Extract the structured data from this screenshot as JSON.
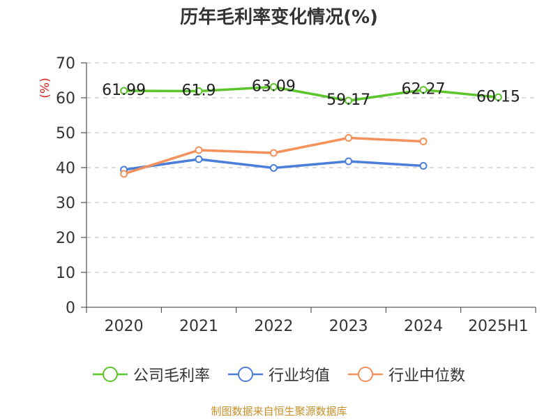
{
  "chart_data": {
    "type": "line",
    "title": "历年毛利率变化情况(%)",
    "ylabel": "(%)",
    "categories": [
      "2020",
      "2021",
      "2022",
      "2023",
      "2024",
      "2025H1"
    ],
    "ylim": [
      0,
      70
    ],
    "yticks": [
      0,
      10,
      20,
      30,
      40,
      50,
      60,
      70
    ],
    "grid": true,
    "legend_position": "bottom",
    "series": [
      {
        "name": "公司毛利率",
        "color": "#5cc52c",
        "values": [
          61.99,
          61.9,
          63.09,
          59.17,
          62.27,
          60.15
        ],
        "labels": [
          "61.99",
          "61.9",
          "63.09",
          "59.17",
          "62.27",
          "60.15"
        ]
      },
      {
        "name": "行业均值",
        "color": "#4a7ed9",
        "values": [
          39.4,
          42.4,
          39.9,
          41.8,
          40.5,
          null
        ]
      },
      {
        "name": "行业中位数",
        "color": "#f4905a",
        "values": [
          38.2,
          45.0,
          44.2,
          48.5,
          47.5,
          null
        ]
      }
    ]
  },
  "source": "制图数据来自恒生聚源数据库"
}
